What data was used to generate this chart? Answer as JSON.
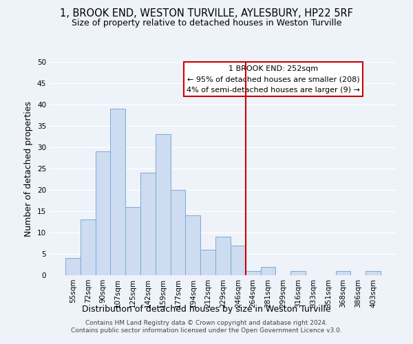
{
  "title": "1, BROOK END, WESTON TURVILLE, AYLESBURY, HP22 5RF",
  "subtitle": "Size of property relative to detached houses in Weston Turville",
  "xlabel": "Distribution of detached houses by size in Weston Turville",
  "ylabel": "Number of detached properties",
  "bar_labels": [
    "55sqm",
    "72sqm",
    "90sqm",
    "107sqm",
    "125sqm",
    "142sqm",
    "159sqm",
    "177sqm",
    "194sqm",
    "212sqm",
    "229sqm",
    "246sqm",
    "264sqm",
    "281sqm",
    "299sqm",
    "316sqm",
    "333sqm",
    "351sqm",
    "368sqm",
    "386sqm",
    "403sqm"
  ],
  "bar_values": [
    4,
    13,
    29,
    39,
    16,
    24,
    33,
    20,
    14,
    6,
    9,
    7,
    1,
    2,
    0,
    1,
    0,
    0,
    1,
    0,
    1
  ],
  "bar_color": "#cddcf0",
  "bar_edge_color": "#7aaad4",
  "vline_color": "#cc0000",
  "annotation_line1": "1 BROOK END: 252sqm",
  "annotation_line2": "← 95% of detached houses are smaller (208)",
  "annotation_line3": "4% of semi-detached houses are larger (9) →",
  "ylim": [
    0,
    50
  ],
  "yticks": [
    0,
    5,
    10,
    15,
    20,
    25,
    30,
    35,
    40,
    45,
    50
  ],
  "footnote1": "Contains HM Land Registry data © Crown copyright and database right 2024.",
  "footnote2": "Contains public sector information licensed under the Open Government Licence v3.0.",
  "background_color": "#eef2f9",
  "grid_color": "#ffffff",
  "title_fontsize": 10.5,
  "subtitle_fontsize": 9,
  "axis_label_fontsize": 9,
  "tick_fontsize": 7.5,
  "annotation_fontsize": 8,
  "footnote_fontsize": 6.5
}
